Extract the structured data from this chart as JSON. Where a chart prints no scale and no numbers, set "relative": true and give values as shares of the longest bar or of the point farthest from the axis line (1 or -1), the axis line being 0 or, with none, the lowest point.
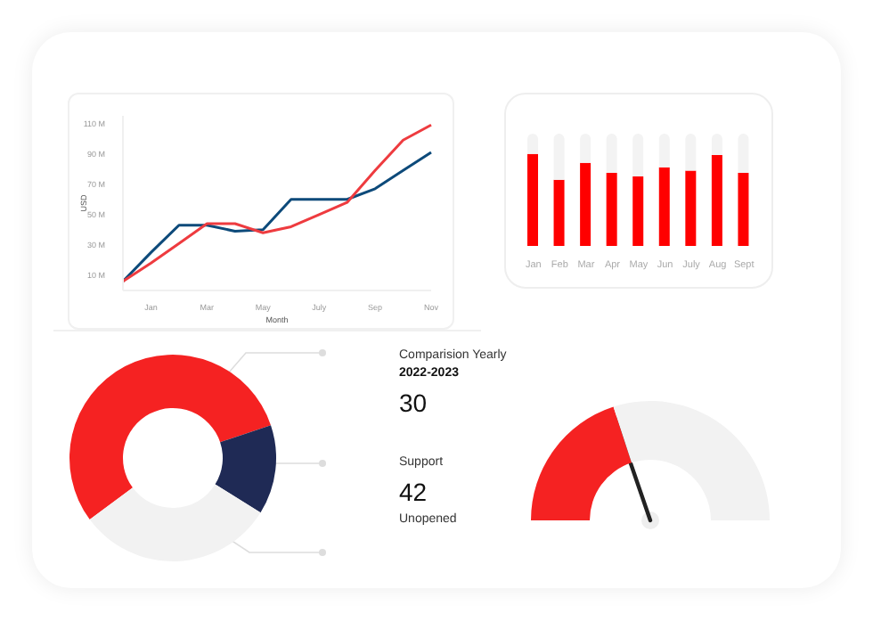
{
  "chart_data": [
    {
      "type": "line",
      "xlabel": "Month",
      "ylabel": "USD",
      "categories": [
        null,
        "Jan",
        null,
        "Mar",
        null,
        "May",
        null,
        "July",
        null,
        "Sep",
        null,
        "Nov"
      ],
      "ylim": [
        0,
        115
      ],
      "yticks": [
        {
          "value": 10,
          "label": "10 M"
        },
        {
          "value": 30,
          "label": "30 M"
        },
        {
          "value": 50,
          "label": "50 M"
        },
        {
          "value": 70,
          "label": "70 M"
        },
        {
          "value": 90,
          "label": "90 M"
        },
        {
          "value": 110,
          "label": "110 M"
        }
      ],
      "grid": false,
      "marker": "none",
      "line_style": "solid",
      "series": [
        {
          "color": "#0d4a7a",
          "values": [
            6,
            25,
            43,
            43,
            39,
            40,
            60,
            60,
            60,
            67,
            79,
            91
          ]
        },
        {
          "color": "#ee3b3f",
          "values": [
            6,
            18,
            31,
            44,
            44,
            38,
            42,
            50,
            58,
            79,
            99,
            109
          ]
        }
      ]
    },
    {
      "type": "bar",
      "relative": true,
      "stacked": true,
      "categories": [
        "Jan",
        "Feb",
        "Mar",
        "Apr",
        "May",
        "Jun",
        "July",
        "Aug",
        "Sept"
      ],
      "series": [
        {
          "color": "#ff0000",
          "values": [
            0.82,
            0.59,
            0.74,
            0.65,
            0.62,
            0.7,
            0.67,
            0.81,
            0.65
          ]
        },
        {
          "color": "#f3f3f3",
          "values": [
            0.18,
            0.41,
            0.26,
            0.35,
            0.38,
            0.3,
            0.33,
            0.19,
            0.35
          ]
        }
      ]
    },
    {
      "type": "donut",
      "categories": [
        null,
        null,
        null
      ],
      "values": [
        55,
        14,
        31
      ],
      "colors": [
        "#f52222",
        "#1f2a55",
        "#f2f2f2"
      ]
    },
    {
      "type": "other",
      "annotations": [
        "Comparision Yearly",
        "2022-2023",
        "30",
        "Support",
        "42",
        "Unopened"
      ]
    },
    {
      "type": "donut",
      "categories": [
        null,
        null
      ],
      "values": [
        40,
        60
      ],
      "colors": [
        "#f52222",
        "#f2f2f2"
      ],
      "needle": null
    }
  ]
}
